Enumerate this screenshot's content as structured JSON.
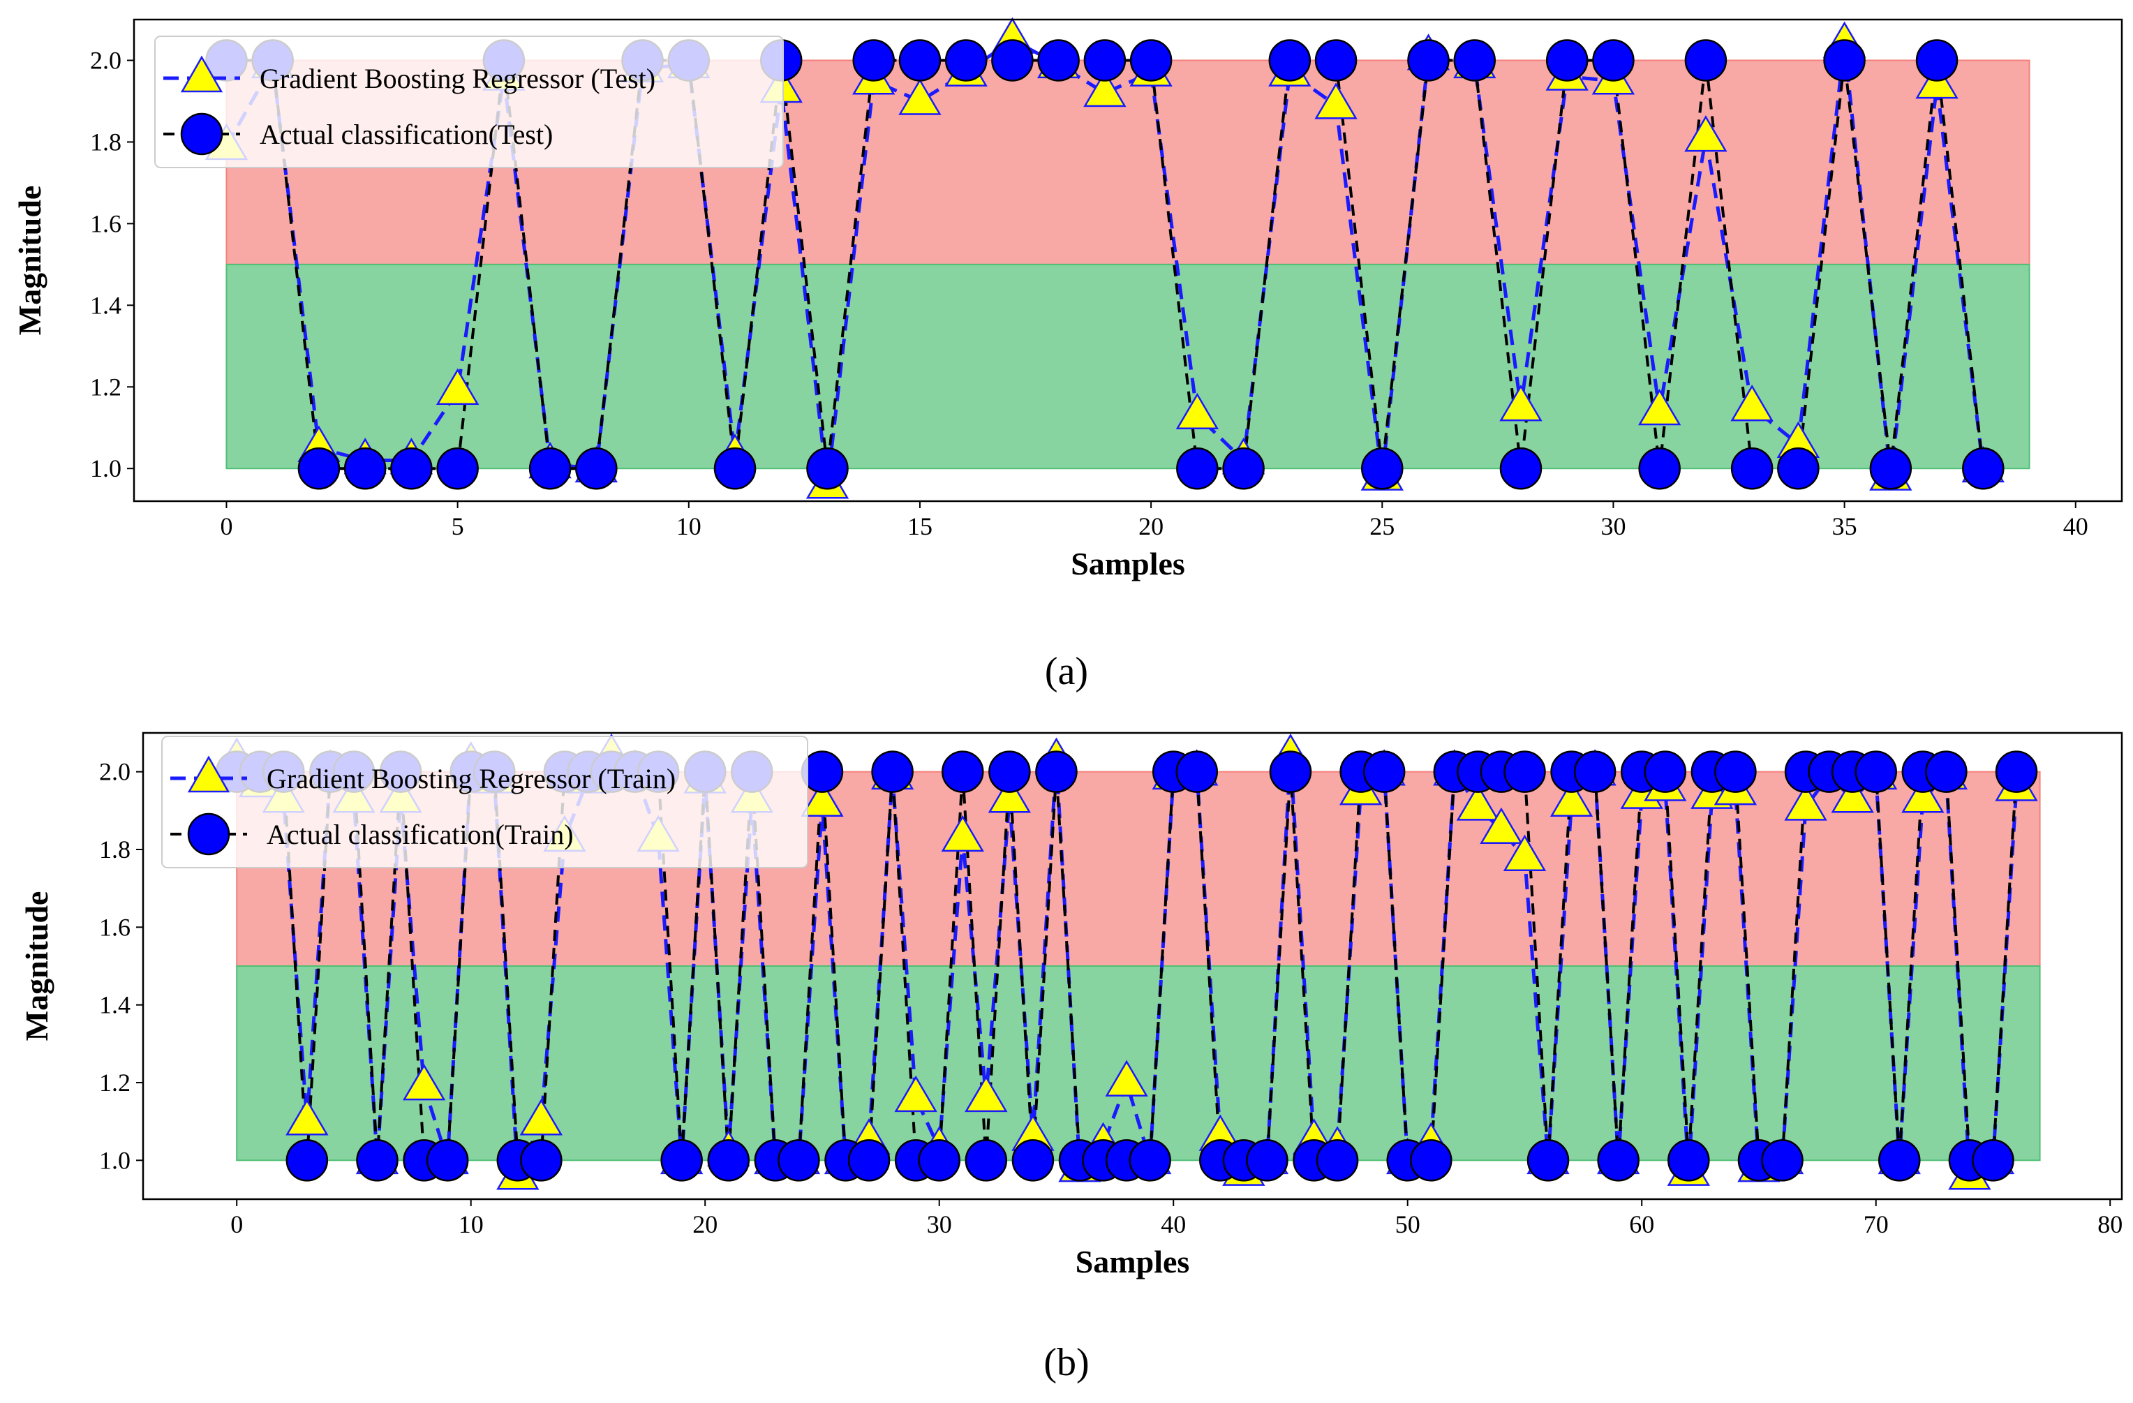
{
  "chart_data": [
    {
      "type": "line",
      "panel_label": "(a)",
      "xlabel": "Samples",
      "ylabel": "Magnitude",
      "xlim": [
        -2,
        41
      ],
      "ylim": [
        0.92,
        2.1
      ],
      "xticks": [
        0,
        5,
        10,
        15,
        20,
        25,
        30,
        35,
        40
      ],
      "yticks": [
        1.0,
        1.2,
        1.4,
        1.6,
        1.8,
        2.0
      ],
      "bands": [
        {
          "name": "red-band",
          "x": [
            0,
            39
          ],
          "y": [
            1.5,
            2.0
          ],
          "color": "#f4807c"
        },
        {
          "name": "green-band",
          "x": [
            0,
            39
          ],
          "y": [
            1.0,
            1.5
          ],
          "color": "#4fbf74"
        }
      ],
      "series": [
        {
          "name": "Gradient Boosting Regressor (Test)",
          "marker": "triangle",
          "line_color": "#1a1aff",
          "marker_color": "#ffff00",
          "values": [
            1.79,
            1.99,
            1.05,
            1.02,
            1.02,
            1.19,
            1.96,
            1.01,
            1.0,
            1.98,
            1.99,
            1.03,
            1.93,
            0.96,
            1.95,
            1.9,
            1.97,
            2.05,
            1.99,
            1.92,
            1.97,
            1.13,
            1.02,
            1.97,
            1.89,
            0.98,
            2.01,
            1.99,
            1.15,
            1.96,
            1.95,
            1.14,
            1.81,
            1.15,
            1.06,
            2.04,
            0.98,
            1.94,
            1.0
          ]
        },
        {
          "name": "Actual classification(Test)",
          "marker": "circle",
          "line_color": "#000000",
          "marker_color": "#0000ff",
          "values": [
            2,
            2,
            1,
            1,
            1,
            1,
            2,
            1,
            1,
            2,
            2,
            1,
            2,
            1,
            2,
            2,
            2,
            2,
            2,
            2,
            2,
            1,
            1,
            2,
            2,
            1,
            2,
            2,
            1,
            2,
            2,
            1,
            2,
            1,
            1,
            2,
            1,
            2,
            1
          ]
        }
      ]
    },
    {
      "type": "line",
      "panel_label": "(b)",
      "xlabel": "Samples",
      "ylabel": "Magnitude",
      "xlim": [
        -4,
        80.5
      ],
      "ylim": [
        0.9,
        2.1
      ],
      "xticks": [
        0,
        10,
        20,
        30,
        40,
        50,
        60,
        70,
        80
      ],
      "yticks": [
        1.0,
        1.2,
        1.4,
        1.6,
        1.8,
        2.0
      ],
      "bands": [
        {
          "name": "red-band",
          "x": [
            0,
            77
          ],
          "y": [
            1.5,
            2.0
          ],
          "color": "#f4807c"
        },
        {
          "name": "green-band",
          "x": [
            0,
            77
          ],
          "y": [
            1.0,
            1.5
          ],
          "color": "#4fbf74"
        }
      ],
      "series": [
        {
          "name": "Gradient Boosting Regressor (Train)",
          "marker": "triangle",
          "line_color": "#1a1aff",
          "marker_color": "#ffff00",
          "values": [
            2.03,
            1.97,
            1.93,
            1.1,
            2.0,
            1.93,
            1.0,
            1.93,
            1.19,
            1.0,
            2.02,
            1.98,
            0.96,
            1.1,
            1.83,
            1.98,
            2.04,
            2.0,
            1.83,
            1.0,
            1.98,
            1.02,
            1.93,
            1.0,
            1.0,
            1.92,
            1.0,
            1.05,
            1.99,
            1.16,
            1.03,
            1.83,
            1.16,
            1.93,
            1.06,
            2.03,
            0.98,
            1.04,
            1.2,
            1.0,
            1.99,
            2.0,
            1.06,
            0.97,
            1.0,
            2.04,
            1.05,
            1.03,
            1.95,
            2.0,
            1.0,
            1.04,
            2.0,
            1.91,
            1.85,
            1.78,
            1.0,
            1.92,
            2.0,
            1.0,
            1.94,
            1.96,
            0.97,
            1.94,
            1.95,
            0.98,
            1.0,
            1.91,
            1.99,
            1.93,
            1.99,
            1.0,
            1.93,
            1.99,
            0.96,
            1.0,
            1.96
          ]
        },
        {
          "name": "Actual classification(Train)",
          "marker": "circle",
          "line_color": "#000000",
          "marker_color": "#0000ff",
          "values": [
            2,
            2,
            2,
            1,
            2,
            2,
            1,
            2,
            1,
            1,
            2,
            2,
            1,
            1,
            2,
            2,
            2,
            2,
            2,
            1,
            2,
            1,
            2,
            1,
            1,
            2,
            1,
            1,
            2,
            1,
            1,
            2,
            1,
            2,
            1,
            2,
            1,
            1,
            1,
            1,
            2,
            2,
            1,
            1,
            1,
            2,
            1,
            1,
            2,
            2,
            1,
            1,
            2,
            2,
            2,
            2,
            1,
            2,
            2,
            1,
            2,
            2,
            1,
            2,
            2,
            1,
            1,
            2,
            2,
            2,
            2,
            1,
            2,
            2,
            1,
            1,
            2
          ]
        }
      ]
    }
  ]
}
